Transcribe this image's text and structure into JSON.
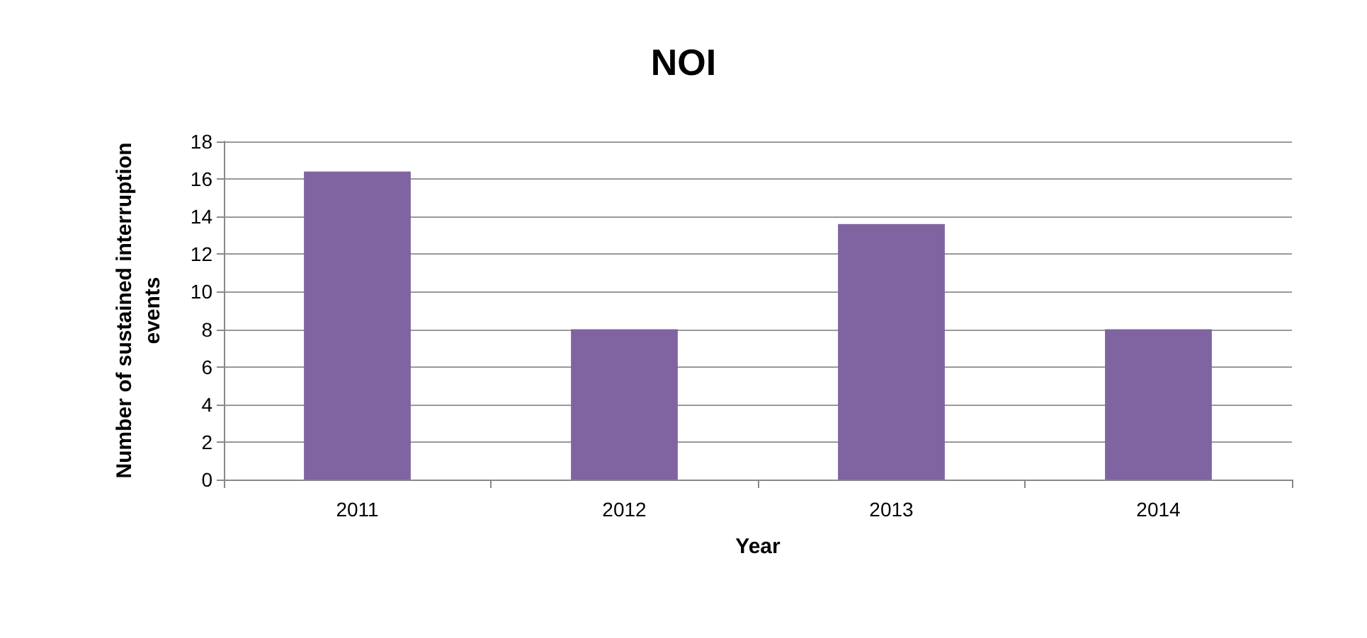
{
  "chart_data": {
    "type": "bar",
    "title": "NOI",
    "xlabel": "Year",
    "ylabel": "Number of sustained interruption\nevents",
    "categories": [
      "2011",
      "2012",
      "2013",
      "2014"
    ],
    "values": [
      16.4,
      8.0,
      13.6,
      8.0
    ],
    "color": "#8064a2",
    "ylim": [
      0,
      18
    ],
    "yticks": [
      0,
      2,
      4,
      6,
      8,
      10,
      12,
      14,
      16,
      18
    ],
    "grid": "y"
  }
}
